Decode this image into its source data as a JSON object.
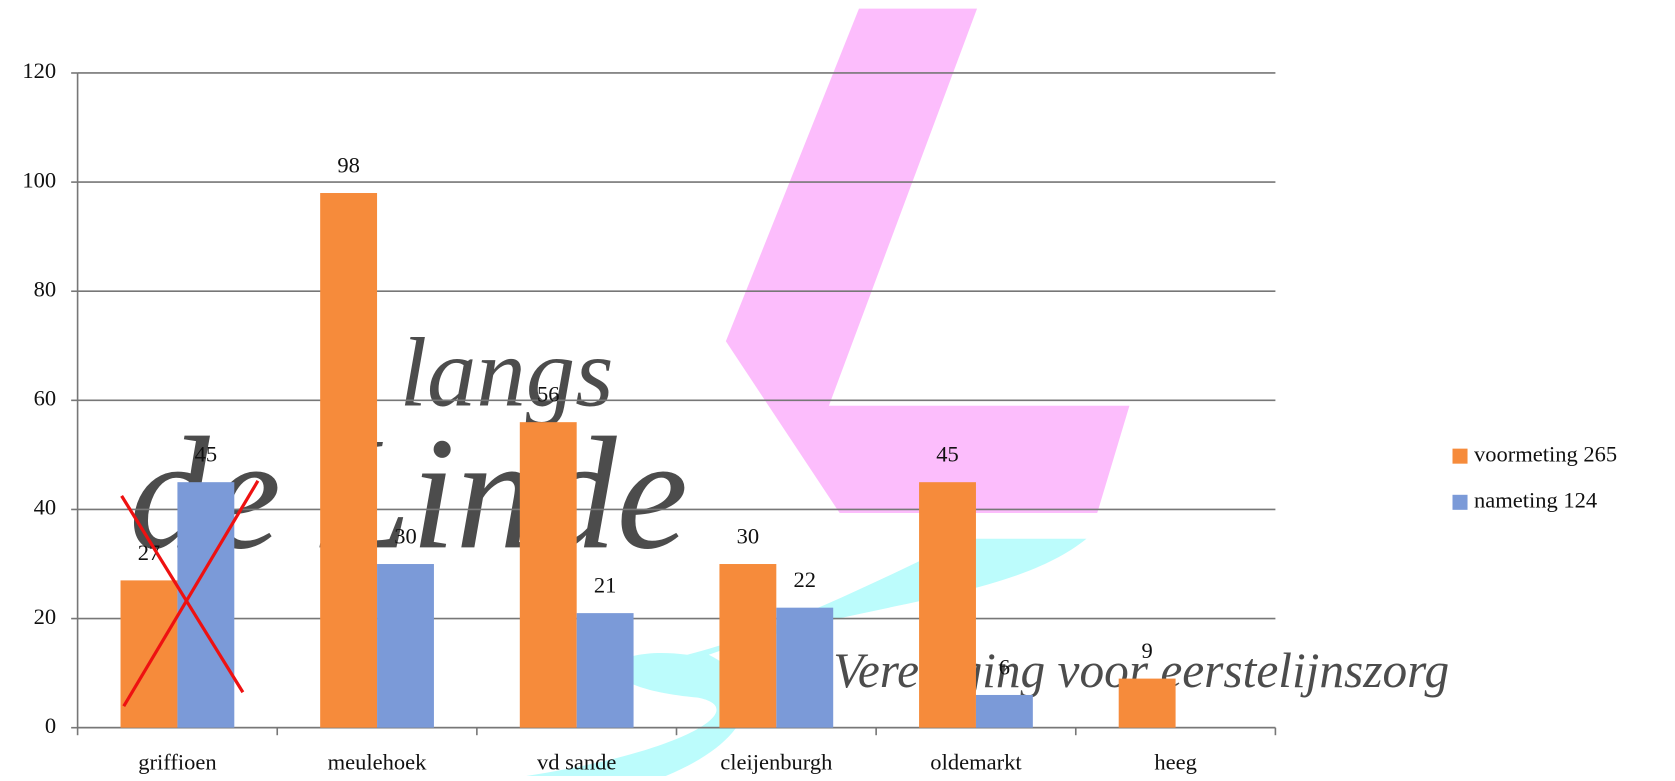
{
  "chart_data": {
    "type": "bar",
    "categories": [
      "griffioen",
      "meulehoek",
      "vd sande",
      "cleijenburgh",
      "oldemarkt",
      "heeg"
    ],
    "series": [
      {
        "name": "voormeting 265",
        "color": "#f68b3b",
        "values": [
          27,
          98,
          56,
          30,
          45,
          9
        ]
      },
      {
        "name": "nameting 124",
        "color": "#7b9ad8",
        "values": [
          45,
          30,
          21,
          22,
          6,
          null
        ]
      }
    ],
    "ylim": [
      0,
      120
    ],
    "yticks": [
      0,
      20,
      40,
      60,
      80,
      100,
      120
    ],
    "grid": true,
    "legend": "right",
    "annotations": [
      "langs",
      "de Linde",
      "Vereniging voor eerstelijnszorg"
    ]
  }
}
